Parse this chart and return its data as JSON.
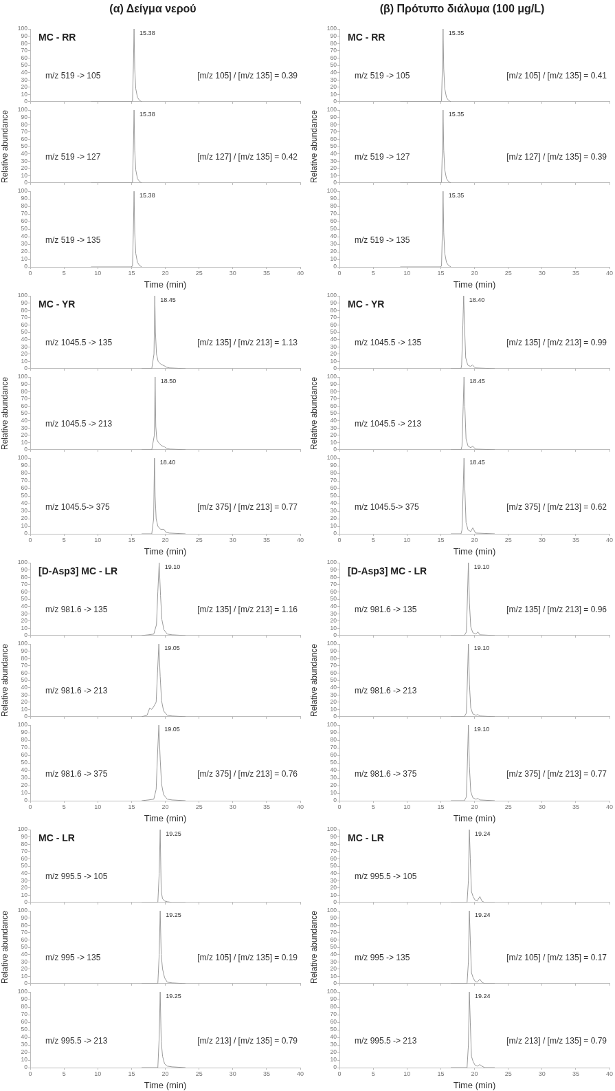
{
  "chart_data": [
    {
      "type": "line",
      "title": "(α) Δείγμα νερού",
      "subtitle": "MC - RR",
      "annotations": [
        "m/z 519 -> 105",
        "[m/z 105] / [m/z 135] = 0.39",
        {
          "text": "15.38",
          "x": 15.38,
          "y": 100
        }
      ],
      "x": [
        9,
        14.9,
        15.15,
        15.28,
        15.38,
        15.48,
        15.63,
        15.88,
        16.18,
        16.5
      ],
      "values": [
        0,
        0,
        1,
        50,
        100,
        45,
        18,
        6,
        2,
        0
      ],
      "color": "#9a9a9a",
      "xlim": [
        0,
        40
      ],
      "ylim": [
        0,
        100
      ],
      "xticks": [
        0,
        5,
        10,
        15,
        20,
        25,
        30,
        35,
        40
      ],
      "yticks": [
        0,
        10,
        20,
        30,
        40,
        50,
        60,
        70,
        80,
        90,
        100
      ],
      "tick_labels": "y"
    },
    {
      "type": "line",
      "title": "(β) Πρότυπο διάλυμα (100 μg/L)",
      "subtitle": "MC - RR",
      "annotations": [
        "m/z 519 -> 105",
        "[m/z 105] / [m/z 135] = 0.41",
        {
          "text": "15.35",
          "x": 15.35,
          "y": 100
        }
      ],
      "x": [
        9,
        14.9,
        15.12,
        15.25,
        15.35,
        15.45,
        15.6,
        15.85,
        16.15,
        16.5
      ],
      "values": [
        0,
        0,
        1,
        50,
        100,
        45,
        18,
        6,
        2,
        0
      ],
      "color": "#9a9a9a",
      "xlim": [
        0,
        40
      ],
      "ylim": [
        0,
        100
      ],
      "xticks": [
        0,
        5,
        10,
        15,
        20,
        25,
        30,
        35,
        40
      ],
      "yticks": [
        0,
        10,
        20,
        30,
        40,
        50,
        60,
        70,
        80,
        90,
        100
      ],
      "tick_labels": "y"
    },
    {
      "type": "line",
      "ylabel": "Relative abundance",
      "annotations": [
        "m/z 519 -> 127",
        "[m/z 127] / [m/z 135] = 0.42",
        {
          "text": "15.38",
          "x": 15.38,
          "y": 100
        }
      ],
      "x": [
        9,
        14.9,
        15.15,
        15.28,
        15.38,
        15.48,
        15.63,
        15.88,
        16.18,
        16.5
      ],
      "values": [
        0,
        0,
        1,
        50,
        100,
        45,
        18,
        6,
        2,
        0
      ],
      "color": "#9a9a9a",
      "xlim": [
        0,
        40
      ],
      "ylim": [
        0,
        100
      ],
      "xticks": [
        0,
        5,
        10,
        15,
        20,
        25,
        30,
        35,
        40
      ],
      "yticks": [
        0,
        10,
        20,
        30,
        40,
        50,
        60,
        70,
        80,
        90,
        100
      ],
      "tick_labels": "y"
    },
    {
      "type": "line",
      "ylabel": "Relative abundance",
      "annotations": [
        "m/z 519 -> 127",
        "[m/z 127] / [m/z 135] = 0.39",
        {
          "text": "15.35",
          "x": 15.35,
          "y": 100
        }
      ],
      "x": [
        9,
        14.9,
        15.12,
        15.25,
        15.35,
        15.45,
        15.6,
        15.85,
        16.15,
        16.5
      ],
      "values": [
        0,
        0,
        1,
        50,
        100,
        45,
        18,
        6,
        2,
        0
      ],
      "color": "#9a9a9a",
      "xlim": [
        0,
        40
      ],
      "ylim": [
        0,
        100
      ],
      "xticks": [
        0,
        5,
        10,
        15,
        20,
        25,
        30,
        35,
        40
      ],
      "yticks": [
        0,
        10,
        20,
        30,
        40,
        50,
        60,
        70,
        80,
        90,
        100
      ],
      "tick_labels": "y"
    },
    {
      "type": "line",
      "xlabel": "Time (min)",
      "annotations": [
        "m/z 519 -> 135",
        {
          "text": "15.38",
          "x": 15.38,
          "y": 100
        }
      ],
      "x": [
        9,
        14.9,
        15.15,
        15.28,
        15.38,
        15.48,
        15.63,
        15.88,
        16.18,
        16.5
      ],
      "values": [
        0,
        0,
        1,
        50,
        100,
        45,
        18,
        6,
        2,
        0
      ],
      "color": "#9a9a9a",
      "xlim": [
        0,
        40
      ],
      "ylim": [
        0,
        100
      ],
      "xticks": [
        0,
        5,
        10,
        15,
        20,
        25,
        30,
        35,
        40
      ],
      "yticks": [
        0,
        10,
        20,
        30,
        40,
        50,
        60,
        70,
        80,
        90,
        100
      ]
    },
    {
      "type": "line",
      "xlabel": "Time (min)",
      "annotations": [
        "m/z 519 -> 135",
        {
          "text": "15.35",
          "x": 15.35,
          "y": 100
        }
      ],
      "x": [
        9,
        14.9,
        15.12,
        15.25,
        15.35,
        15.45,
        15.6,
        15.85,
        16.15,
        16.5
      ],
      "values": [
        0,
        0,
        1,
        50,
        100,
        45,
        18,
        6,
        2,
        0
      ],
      "color": "#9a9a9a",
      "xlim": [
        0,
        40
      ],
      "ylim": [
        0,
        100
      ],
      "xticks": [
        0,
        5,
        10,
        15,
        20,
        25,
        30,
        35,
        40
      ],
      "yticks": [
        0,
        10,
        20,
        30,
        40,
        50,
        60,
        70,
        80,
        90,
        100
      ]
    },
    {
      "type": "line",
      "subtitle": "MC - YR",
      "annotations": [
        "m/z 1045.5 -> 135",
        "[m/z 135] / [m/z 213] = 1.13",
        {
          "text": "18.45",
          "x": 18.45,
          "y": 100
        }
      ],
      "x": [
        16.5,
        18.0,
        18.33,
        18.45,
        18.55,
        18.7,
        18.95,
        19.35,
        19.85,
        20.15,
        20.65,
        23
      ],
      "values": [
        0,
        0,
        20,
        100,
        50,
        20,
        10,
        6,
        4,
        2,
        1,
        0
      ],
      "color": "#9a9a9a",
      "xlim": [
        0,
        40
      ],
      "ylim": [
        0,
        100
      ],
      "xticks": [
        0,
        5,
        10,
        15,
        20,
        25,
        30,
        35,
        40
      ],
      "yticks": [
        0,
        10,
        20,
        30,
        40,
        50,
        60,
        70,
        80,
        90,
        100
      ],
      "tick_labels": "y"
    },
    {
      "type": "line",
      "subtitle": "MC - YR",
      "annotations": [
        "m/z 1045.5 -> 135",
        "[m/z 135] / [m/z 213] = 0.99",
        {
          "text": "18.40",
          "x": 18.4,
          "y": 100
        }
      ],
      "x": [
        16.5,
        18.0,
        18.1,
        18.28,
        18.4,
        18.52,
        18.7,
        19.0,
        19.4,
        19.7,
        20.1,
        23
      ],
      "values": [
        0,
        0,
        5,
        60,
        100,
        60,
        15,
        5,
        3,
        5,
        1,
        0
      ],
      "color": "#9a9a9a",
      "xlim": [
        0,
        40
      ],
      "ylim": [
        0,
        100
      ],
      "xticks": [
        0,
        5,
        10,
        15,
        20,
        25,
        30,
        35,
        40
      ],
      "yticks": [
        0,
        10,
        20,
        30,
        40,
        50,
        60,
        70,
        80,
        90,
        100
      ],
      "tick_labels": "y"
    },
    {
      "type": "line",
      "ylabel": "Relative abundance",
      "annotations": [
        "m/z 1045.5 -> 213",
        {
          "text": "18.50",
          "x": 18.5,
          "y": 100
        }
      ],
      "x": [
        16.5,
        18.0,
        18.38,
        18.5,
        18.6,
        18.75,
        19.0,
        19.4,
        19.9,
        20.2,
        20.7,
        23
      ],
      "values": [
        0,
        0,
        20,
        100,
        32,
        14,
        10,
        6,
        4,
        2,
        1,
        0
      ],
      "color": "#9a9a9a",
      "xlim": [
        0,
        40
      ],
      "ylim": [
        0,
        100
      ],
      "xticks": [
        0,
        5,
        10,
        15,
        20,
        25,
        30,
        35,
        40
      ],
      "yticks": [
        0,
        10,
        20,
        30,
        40,
        50,
        60,
        70,
        80,
        90,
        100
      ],
      "tick_labels": "y"
    },
    {
      "type": "line",
      "ylabel": "Relative abundance",
      "annotations": [
        "m/z 1045.5 -> 213",
        {
          "text": "18.45",
          "x": 18.45,
          "y": 100
        }
      ],
      "x": [
        16.5,
        18.0,
        18.15,
        18.33,
        18.45,
        18.57,
        18.75,
        19.05,
        19.45,
        19.75,
        20.15,
        23
      ],
      "values": [
        0,
        0,
        5,
        60,
        100,
        60,
        15,
        5,
        3,
        5,
        1,
        0
      ],
      "color": "#9a9a9a",
      "xlim": [
        0,
        40
      ],
      "ylim": [
        0,
        100
      ],
      "xticks": [
        0,
        5,
        10,
        15,
        20,
        25,
        30,
        35,
        40
      ],
      "yticks": [
        0,
        10,
        20,
        30,
        40,
        50,
        60,
        70,
        80,
        90,
        100
      ],
      "tick_labels": "y"
    },
    {
      "type": "line",
      "xlabel": "Time (min)",
      "annotations": [
        "m/z 1045.5-> 375",
        "[m/z 375] / [m/z 213] = 0.77",
        {
          "text": "18.40",
          "x": 18.4,
          "y": 100
        }
      ],
      "x": [
        16.5,
        18.0,
        18.28,
        18.4,
        18.5,
        18.65,
        18.9,
        19.3,
        19.8,
        20.1,
        20.6,
        23
      ],
      "values": [
        0,
        0,
        20,
        100,
        50,
        20,
        10,
        6,
        6,
        2,
        1,
        0
      ],
      "color": "#9a9a9a",
      "xlim": [
        0,
        40
      ],
      "ylim": [
        0,
        100
      ],
      "xticks": [
        0,
        5,
        10,
        15,
        20,
        25,
        30,
        35,
        40
      ],
      "yticks": [
        0,
        10,
        20,
        30,
        40,
        50,
        60,
        70,
        80,
        90,
        100
      ]
    },
    {
      "type": "line",
      "xlabel": "Time (min)",
      "annotations": [
        "m/z 1045.5-> 375",
        "[m/z 375] / [m/z 213] = 0.62",
        {
          "text": "18.45",
          "x": 18.45,
          "y": 100
        }
      ],
      "x": [
        16.5,
        18.0,
        18.15,
        18.33,
        18.45,
        18.57,
        18.75,
        19.05,
        19.45,
        19.75,
        20.15,
        23
      ],
      "values": [
        0,
        0,
        5,
        60,
        100,
        60,
        15,
        5,
        3,
        8,
        1,
        0
      ],
      "color": "#9a9a9a",
      "xlim": [
        0,
        40
      ],
      "ylim": [
        0,
        100
      ],
      "xticks": [
        0,
        5,
        10,
        15,
        20,
        25,
        30,
        35,
        40
      ],
      "yticks": [
        0,
        10,
        20,
        30,
        40,
        50,
        60,
        70,
        80,
        90,
        100
      ]
    },
    {
      "type": "line",
      "subtitle": "[D-Asp3] MC - LR",
      "annotations": [
        "m/z 981.6 -> 135",
        "[m/z 135] / [m/z 213] = 1.16",
        {
          "text": "19.10",
          "x": 19.1,
          "y": 100
        }
      ],
      "x": [
        16.5,
        17.5,
        18.3,
        18.7,
        18.9,
        19.1,
        19.3,
        19.5,
        19.8,
        20.3,
        21,
        23
      ],
      "values": [
        0,
        1,
        2,
        15,
        60,
        100,
        55,
        22,
        8,
        2,
        1,
        0
      ],
      "color": "#9a9a9a",
      "xlim": [
        0,
        40
      ],
      "ylim": [
        0,
        100
      ],
      "xticks": [
        0,
        5,
        10,
        15,
        20,
        25,
        30,
        35,
        40
      ],
      "yticks": [
        0,
        10,
        20,
        30,
        40,
        50,
        60,
        70,
        80,
        90,
        100
      ],
      "tick_labels": "y"
    },
    {
      "type": "line",
      "subtitle": "[D-Asp3] MC - LR",
      "annotations": [
        "m/z 981.6 -> 135",
        "[m/z 135] / [m/z 213] = 0.96",
        {
          "text": "19.10",
          "x": 19.1,
          "y": 100
        }
      ],
      "x": [
        16.5,
        18.5,
        18.8,
        18.95,
        19.1,
        19.25,
        19.45,
        19.75,
        20.2,
        20.5,
        20.8,
        23
      ],
      "values": [
        0,
        0,
        5,
        50,
        100,
        45,
        12,
        4,
        2,
        5,
        1,
        0
      ],
      "color": "#9a9a9a",
      "xlim": [
        0,
        40
      ],
      "ylim": [
        0,
        100
      ],
      "xticks": [
        0,
        5,
        10,
        15,
        20,
        25,
        30,
        35,
        40
      ],
      "yticks": [
        0,
        10,
        20,
        30,
        40,
        50,
        60,
        70,
        80,
        90,
        100
      ],
      "tick_labels": "y"
    },
    {
      "type": "line",
      "ylabel": "Relative abundance",
      "annotations": [
        "m/z 981.6 -> 213",
        {
          "text": "19.05",
          "x": 19.05,
          "y": 100
        }
      ],
      "x": [
        16.5,
        17.3,
        17.7,
        18.0,
        18.3,
        18.65,
        18.85,
        19.05,
        19.25,
        19.45,
        19.75,
        20.3,
        21,
        23
      ],
      "values": [
        0,
        2,
        12,
        10,
        14,
        20,
        60,
        100,
        55,
        22,
        8,
        2,
        1,
        0
      ],
      "color": "#9a9a9a",
      "xlim": [
        0,
        40
      ],
      "ylim": [
        0,
        100
      ],
      "xticks": [
        0,
        5,
        10,
        15,
        20,
        25,
        30,
        35,
        40
      ],
      "yticks": [
        0,
        10,
        20,
        30,
        40,
        50,
        60,
        70,
        80,
        90,
        100
      ],
      "tick_labels": "y"
    },
    {
      "type": "line",
      "ylabel": "Relative abundance",
      "annotations": [
        "m/z 981.6 -> 213",
        {
          "text": "19.10",
          "x": 19.1,
          "y": 100
        }
      ],
      "x": [
        16.5,
        18.5,
        18.8,
        18.95,
        19.1,
        19.25,
        19.45,
        19.75,
        20.2,
        20.5,
        20.8,
        23
      ],
      "values": [
        0,
        0,
        5,
        50,
        100,
        45,
        12,
        4,
        2,
        3,
        1,
        0
      ],
      "color": "#9a9a9a",
      "xlim": [
        0,
        40
      ],
      "ylim": [
        0,
        100
      ],
      "xticks": [
        0,
        5,
        10,
        15,
        20,
        25,
        30,
        35,
        40
      ],
      "yticks": [
        0,
        10,
        20,
        30,
        40,
        50,
        60,
        70,
        80,
        90,
        100
      ],
      "tick_labels": "y"
    },
    {
      "type": "line",
      "xlabel": "Time (min)",
      "annotations": [
        "m/z 981.6 -> 375",
        "[m/z 375] / [m/z 213] = 0.76",
        {
          "text": "19.05",
          "x": 19.05,
          "y": 100
        }
      ],
      "x": [
        16.5,
        17.5,
        18.3,
        18.65,
        18.85,
        19.05,
        19.25,
        19.45,
        19.75,
        20.3,
        21,
        23
      ],
      "values": [
        0,
        1,
        2,
        15,
        60,
        100,
        55,
        22,
        8,
        2,
        1,
        0
      ],
      "color": "#9a9a9a",
      "xlim": [
        0,
        40
      ],
      "ylim": [
        0,
        100
      ],
      "xticks": [
        0,
        5,
        10,
        15,
        20,
        25,
        30,
        35,
        40
      ],
      "yticks": [
        0,
        10,
        20,
        30,
        40,
        50,
        60,
        70,
        80,
        90,
        100
      ]
    },
    {
      "type": "line",
      "xlabel": "Time (min)",
      "annotations": [
        "m/z 981.6 -> 375",
        "[m/z 375] / [m/z 213] = 0.77",
        {
          "text": "19.10",
          "x": 19.1,
          "y": 100
        }
      ],
      "x": [
        16.5,
        18.5,
        18.8,
        18.95,
        19.1,
        19.25,
        19.45,
        19.75,
        20.2,
        20.5,
        20.8,
        23
      ],
      "values": [
        0,
        0,
        5,
        50,
        100,
        45,
        12,
        4,
        2,
        3,
        1,
        0
      ],
      "color": "#9a9a9a",
      "xlim": [
        0,
        40
      ],
      "ylim": [
        0,
        100
      ],
      "xticks": [
        0,
        5,
        10,
        15,
        20,
        25,
        30,
        35,
        40
      ],
      "yticks": [
        0,
        10,
        20,
        30,
        40,
        50,
        60,
        70,
        80,
        90,
        100
      ]
    },
    {
      "type": "line",
      "subtitle": "MC - LR",
      "annotations": [
        "m/z 995.5 -> 105",
        {
          "text": "19.25",
          "x": 19.25,
          "y": 100
        }
      ],
      "x": [
        16.5,
        18.9,
        19.1,
        19.25,
        19.4,
        19.6,
        19.9,
        20.3,
        21,
        23
      ],
      "values": [
        0,
        0,
        40,
        100,
        15,
        5,
        2,
        1,
        0,
        0
      ],
      "color": "#9a9a9a",
      "xlim": [
        0,
        40
      ],
      "ylim": [
        0,
        100
      ],
      "xticks": [
        0,
        5,
        10,
        15,
        20,
        25,
        30,
        35,
        40
      ],
      "yticks": [
        0,
        10,
        20,
        30,
        40,
        50,
        60,
        70,
        80,
        90,
        100
      ],
      "tick_labels": "y"
    },
    {
      "type": "line",
      "subtitle": "MC - LR",
      "annotations": [
        "m/z 995.5 -> 105",
        {
          "text": "19.24",
          "x": 19.24,
          "y": 100
        }
      ],
      "x": [
        16.5,
        18.9,
        19.1,
        19.24,
        19.38,
        19.55,
        19.8,
        20.1,
        20.4,
        20.8,
        21.1,
        21.5,
        23
      ],
      "values": [
        0,
        0,
        30,
        100,
        60,
        15,
        8,
        3,
        2,
        8,
        2,
        0,
        0
      ],
      "color": "#9a9a9a",
      "xlim": [
        0,
        40
      ],
      "ylim": [
        0,
        100
      ],
      "xticks": [
        0,
        5,
        10,
        15,
        20,
        25,
        30,
        35,
        40
      ],
      "yticks": [
        0,
        10,
        20,
        30,
        40,
        50,
        60,
        70,
        80,
        90,
        100
      ],
      "tick_labels": "y"
    },
    {
      "type": "line",
      "ylabel": "Relative abundance",
      "annotations": [
        "m/z 995 -> 135",
        "[m/z 105] / [m/z 135] = 0.19",
        {
          "text": "19.25",
          "x": 19.25,
          "y": 100
        }
      ],
      "x": [
        16.5,
        18.9,
        19.1,
        19.25,
        19.4,
        19.6,
        19.9,
        20.3,
        21,
        23
      ],
      "values": [
        0,
        0,
        40,
        100,
        40,
        20,
        8,
        2,
        1,
        0
      ],
      "color": "#9a9a9a",
      "xlim": [
        0,
        40
      ],
      "ylim": [
        0,
        100
      ],
      "xticks": [
        0,
        5,
        10,
        15,
        20,
        25,
        30,
        35,
        40
      ],
      "yticks": [
        0,
        10,
        20,
        30,
        40,
        50,
        60,
        70,
        80,
        90,
        100
      ],
      "tick_labels": "y"
    },
    {
      "type": "line",
      "ylabel": "Relative abundance",
      "annotations": [
        "m/z 995 -> 135",
        "[m/z 105] / [m/z 135] = 0.17",
        {
          "text": "19.24",
          "x": 19.24,
          "y": 100
        }
      ],
      "x": [
        16.5,
        18.9,
        19.1,
        19.24,
        19.38,
        19.55,
        19.8,
        20.1,
        20.4,
        20.8,
        21.1,
        21.5,
        23
      ],
      "values": [
        0,
        0,
        30,
        100,
        60,
        15,
        8,
        3,
        2,
        6,
        2,
        0,
        0
      ],
      "color": "#9a9a9a",
      "xlim": [
        0,
        40
      ],
      "ylim": [
        0,
        100
      ],
      "xticks": [
        0,
        5,
        10,
        15,
        20,
        25,
        30,
        35,
        40
      ],
      "yticks": [
        0,
        10,
        20,
        30,
        40,
        50,
        60,
        70,
        80,
        90,
        100
      ],
      "tick_labels": "y"
    },
    {
      "type": "line",
      "xlabel": "Time (min)",
      "annotations": [
        "m/z 995.5 -> 213",
        "[m/z 213] / [m/z 135] = 0.79",
        {
          "text": "19.25",
          "x": 19.25,
          "y": 100
        }
      ],
      "x": [
        16.5,
        18.9,
        19.1,
        19.25,
        19.4,
        19.6,
        19.9,
        20.3,
        21,
        23
      ],
      "values": [
        0,
        0,
        40,
        100,
        35,
        15,
        5,
        2,
        1,
        0
      ],
      "color": "#9a9a9a",
      "xlim": [
        0,
        40
      ],
      "ylim": [
        0,
        100
      ],
      "xticks": [
        0,
        5,
        10,
        15,
        20,
        25,
        30,
        35,
        40
      ],
      "yticks": [
        0,
        10,
        20,
        30,
        40,
        50,
        60,
        70,
        80,
        90,
        100
      ]
    },
    {
      "type": "line",
      "xlabel": "Time (min)",
      "annotations": [
        "m/z 995.5 -> 213",
        "[m/z 213] / [m/z 135] = 0.79",
        {
          "text": "19.24",
          "x": 19.24,
          "y": 100
        }
      ],
      "x": [
        16.5,
        18.9,
        19.1,
        19.24,
        19.38,
        19.55,
        19.8,
        20.1,
        20.4,
        20.8,
        21.1,
        21.5,
        23
      ],
      "values": [
        0,
        0,
        30,
        100,
        60,
        15,
        8,
        3,
        2,
        4,
        2,
        0,
        0
      ],
      "color": "#9a9a9a",
      "xlim": [
        0,
        40
      ],
      "ylim": [
        0,
        100
      ],
      "xticks": [
        0,
        5,
        10,
        15,
        20,
        25,
        30,
        35,
        40
      ],
      "yticks": [
        0,
        10,
        20,
        30,
        40,
        50,
        60,
        70,
        80,
        90,
        100
      ]
    }
  ]
}
